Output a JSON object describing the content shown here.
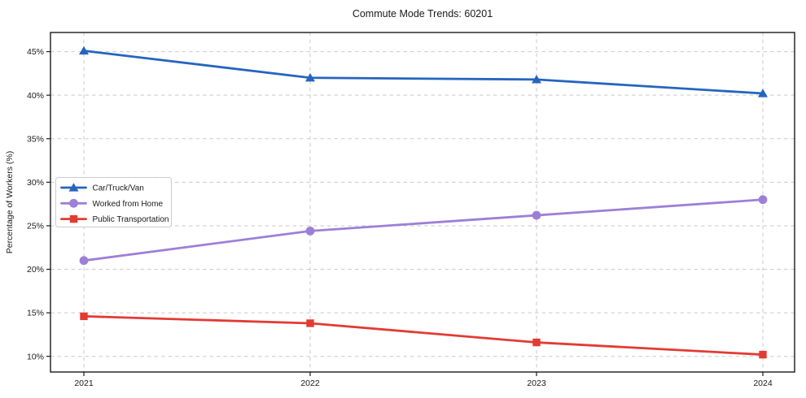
{
  "page": {
    "title": "Commute Mode Trends: 60201"
  },
  "chart_data": {
    "type": "line",
    "title": "Commute Mode Trends: 60201",
    "xlabel": "",
    "ylabel": "Percentage of Workers (%)",
    "x": [
      2021,
      2022,
      2023,
      2024
    ],
    "x_tick_labels": [
      "2021",
      "2022",
      "2023",
      "2024"
    ],
    "y_ticks": [
      10,
      15,
      20,
      25,
      30,
      35,
      40,
      45
    ],
    "y_tick_labels": [
      "10%",
      "15%",
      "20%",
      "25%",
      "30%",
      "35%",
      "40%",
      "45%"
    ],
    "ylim": [
      8.2,
      47.2
    ],
    "grid": true,
    "grid_style": "dashed",
    "legend_position": "center-left",
    "colors": {
      "frame": "#1a1a1a",
      "grid": "#c9c9c9",
      "legend_border": "#cccccc",
      "background": "#ffffff"
    },
    "series": [
      {
        "name": "Car/Truck/Van",
        "color": "#2565bf",
        "marker": "triangle",
        "values": [
          45.1,
          42.0,
          41.8,
          40.2
        ]
      },
      {
        "name": "Worked from Home",
        "color": "#9d7fd8",
        "marker": "circle",
        "values": [
          21.0,
          24.4,
          26.2,
          28.0
        ]
      },
      {
        "name": "Public Transportation",
        "color": "#e23b33",
        "marker": "square",
        "values": [
          14.6,
          13.8,
          11.6,
          10.2
        ]
      }
    ]
  }
}
